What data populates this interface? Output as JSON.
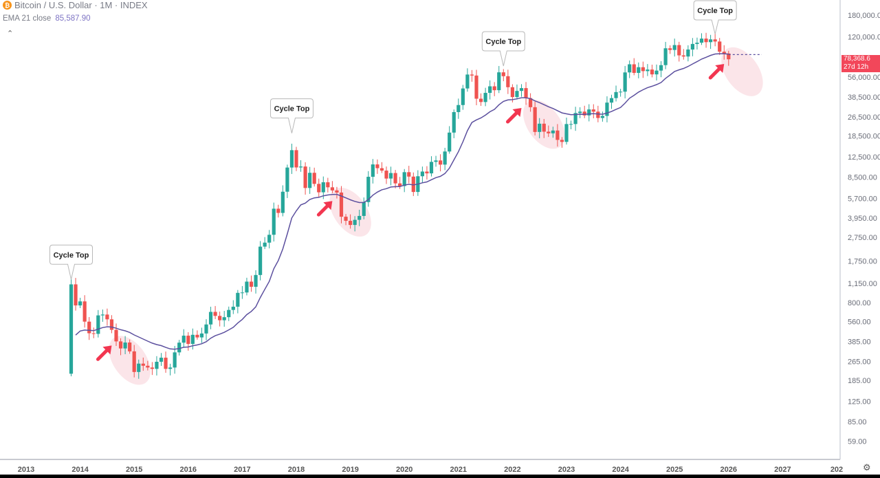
{
  "header": {
    "symbol_title": "Bitcoin / U.S. Dollar · 1M · INDEX",
    "coin_icon": "bitcoin-icon",
    "ema_label": "EMA 21 close",
    "ema_value": "85,587.90",
    "collapse_icon": "chevron-up-icon"
  },
  "price_label": {
    "price": "78,368.6",
    "countdown": "27d 12h",
    "color": "#f2475a"
  },
  "settings_icon": "gear-icon",
  "colors": {
    "up": "#26a69a",
    "down": "#ef5350",
    "ema": "#5b4f9e",
    "annotation": "#f23650",
    "shade": "#f7c6cf"
  },
  "chart_data": {
    "type": "candlestick",
    "title": "Bitcoin / U.S. Dollar · 1M · INDEX",
    "scale": "log",
    "ylim": [
      50,
      200000
    ],
    "y_ticks": [
      "180,000.00",
      "120,000.00",
      "56,000.00",
      "38,500.00",
      "26,500.00",
      "18,500.00",
      "12,500.00",
      "8,500.00",
      "5,700.00",
      "3,950.00",
      "2,750.00",
      "1,750.00",
      "1,150.00",
      "800.00",
      "560.00",
      "385.00",
      "265.00",
      "185.00",
      "125.00",
      "85.00",
      "59.00"
    ],
    "x_ticks": [
      "2013",
      "2014",
      "2015",
      "2016",
      "2017",
      "2018",
      "2019",
      "2020",
      "2021",
      "2022",
      "2023",
      "2024",
      "2025",
      "2026",
      "2027",
      "202"
    ],
    "start": "2013-11",
    "first_open": 210,
    "closes": [
      1130,
      760,
      820,
      560,
      450,
      445,
      630,
      640,
      585,
      480,
      386,
      338,
      378,
      320,
      217,
      254,
      244,
      236,
      230,
      263,
      284,
      230,
      236,
      314,
      377,
      430,
      368,
      437,
      416,
      448,
      531,
      673,
      624,
      575,
      609,
      698,
      742,
      963,
      970,
      1190,
      1080,
      1348,
      2300,
      2480,
      2875,
      4700,
      4340,
      6470,
      10200,
      14150,
      10220,
      10400,
      6940,
      9240,
      7500,
      6400,
      7730,
      7030,
      6630,
      6370,
      4040,
      3740,
      3460,
      3810,
      4100,
      5320,
      8570,
      10820,
      10080,
      9630,
      8290,
      9200,
      7570,
      7200,
      9350,
      8600,
      6440,
      8660,
      9460,
      9140,
      11350,
      11660,
      10780,
      13800,
      19700,
      28990,
      33100,
      45240,
      58800,
      57700,
      37300,
      35040,
      41630,
      47100,
      43790,
      61300,
      57000,
      46300,
      38480,
      43190,
      45540,
      37710,
      31790,
      19940,
      23300,
      20050,
      19430,
      20490,
      17170,
      16540,
      23140,
      23150,
      28480,
      29250,
      27220,
      30480,
      29230,
      25940,
      26970,
      34660,
      37720,
      42270,
      42580,
      61200,
      71300,
      60650,
      67500,
      62700,
      64600,
      58970,
      63330,
      70200,
      96400,
      93400,
      102400,
      84350,
      82550,
      94200,
      104600,
      107100,
      115700,
      108200,
      114000,
      109500,
      90400,
      87500,
      78368.6
    ],
    "ema_period": 21,
    "ema_last": 85587.9,
    "annotations": [
      {
        "type": "label",
        "text": "Cycle Top",
        "date": "2013-11",
        "price": 1240
      },
      {
        "type": "label",
        "text": "Cycle Top",
        "date": "2017-12",
        "price": 19500
      },
      {
        "type": "label",
        "text": "Cycle Top",
        "date": "2021-11",
        "price": 69000
      },
      {
        "type": "label",
        "text": "Cycle Top",
        "date": "2025-10",
        "price": 126000
      },
      {
        "type": "arrow",
        "date": "2014-08",
        "price": 357
      },
      {
        "type": "arrow",
        "date": "2018-09",
        "price": 5430
      },
      {
        "type": "arrow",
        "date": "2022-03",
        "price": 31300
      },
      {
        "type": "arrow",
        "date": "2025-12",
        "price": 71700
      },
      {
        "type": "shade",
        "date": "2014-12",
        "price": 270
      },
      {
        "type": "shade",
        "date": "2019-01",
        "price": 4400
      },
      {
        "type": "shade",
        "date": "2022-08",
        "price": 23000
      },
      {
        "type": "shade",
        "date": "2026-04",
        "price": 62000
      }
    ]
  }
}
